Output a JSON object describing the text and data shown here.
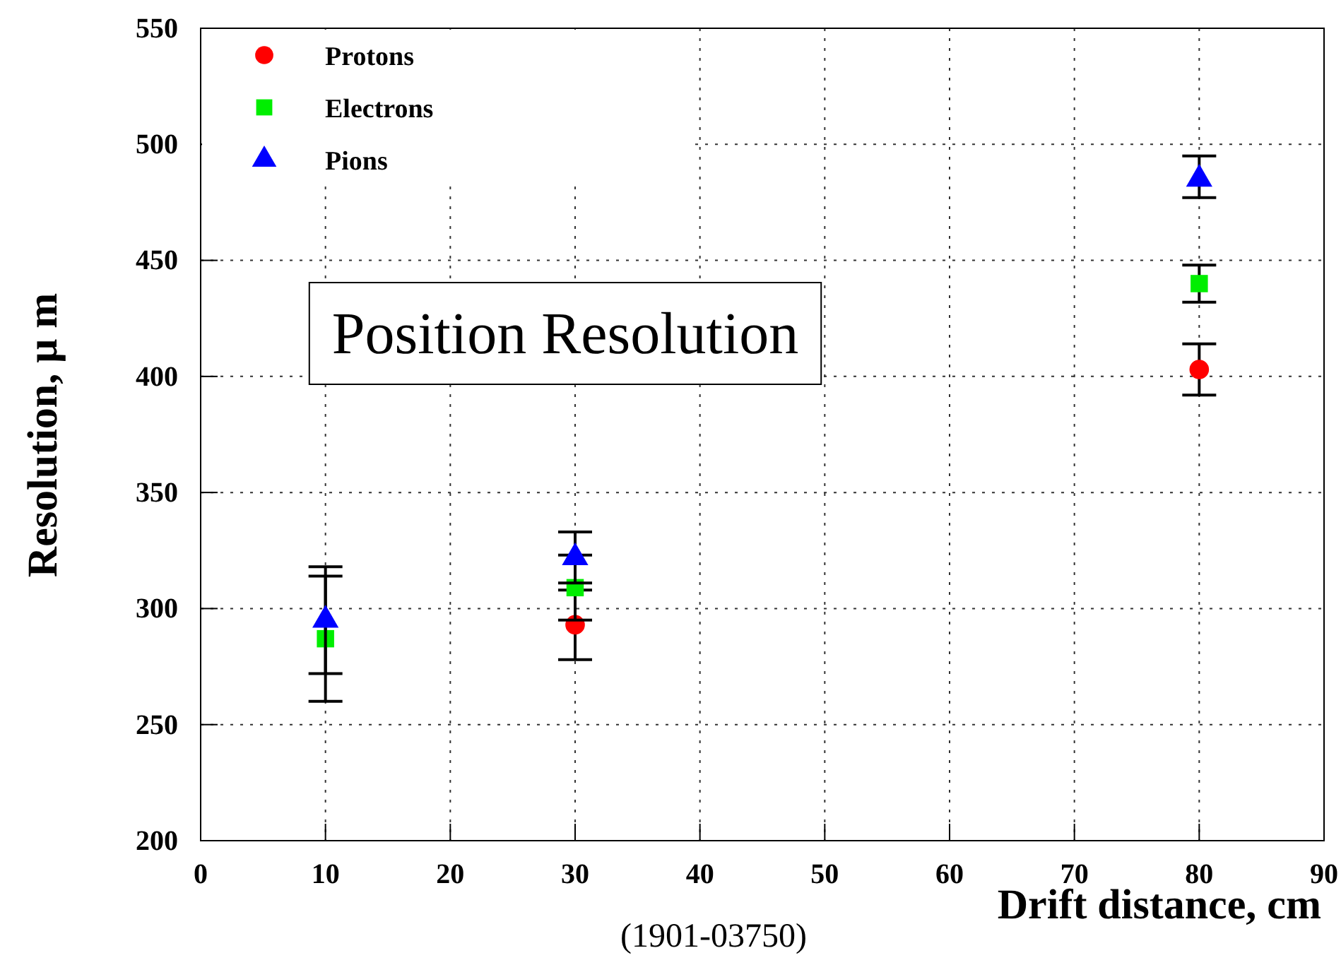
{
  "chart_data": {
    "type": "scatter",
    "title": "Position Resolution",
    "xlabel": "Drift distance, cm",
    "ylabel": "Resolution,  μ m",
    "annotations": [
      "(1901-03750)"
    ],
    "x": [
      10,
      30,
      80
    ],
    "xlim": [
      0,
      90
    ],
    "xticks": [
      0,
      10,
      20,
      30,
      40,
      50,
      60,
      70,
      80,
      90
    ],
    "ylim": [
      200,
      550
    ],
    "yticks": [
      200,
      250,
      300,
      350,
      400,
      450,
      500,
      550
    ],
    "grid": true,
    "legend": "top left",
    "series": [
      {
        "name": "Protons",
        "color": "#ff0000",
        "marker": "circle",
        "values": [
          null,
          293,
          403
        ],
        "errors": [
          null,
          15,
          [
            392,
            414
          ]
        ]
      },
      {
        "name": "Electrons",
        "color": "#00ee00",
        "marker": "square",
        "values": [
          287,
          309,
          440
        ],
        "errors": [
          [
            260,
            314
          ],
          14,
          [
            432,
            448
          ]
        ]
      },
      {
        "name": "Pions",
        "color": "#0000ff",
        "marker": "triangle",
        "values": [
          295,
          322,
          485
        ],
        "errors": [
          23,
          11,
          [
            477,
            495
          ]
        ]
      }
    ]
  }
}
